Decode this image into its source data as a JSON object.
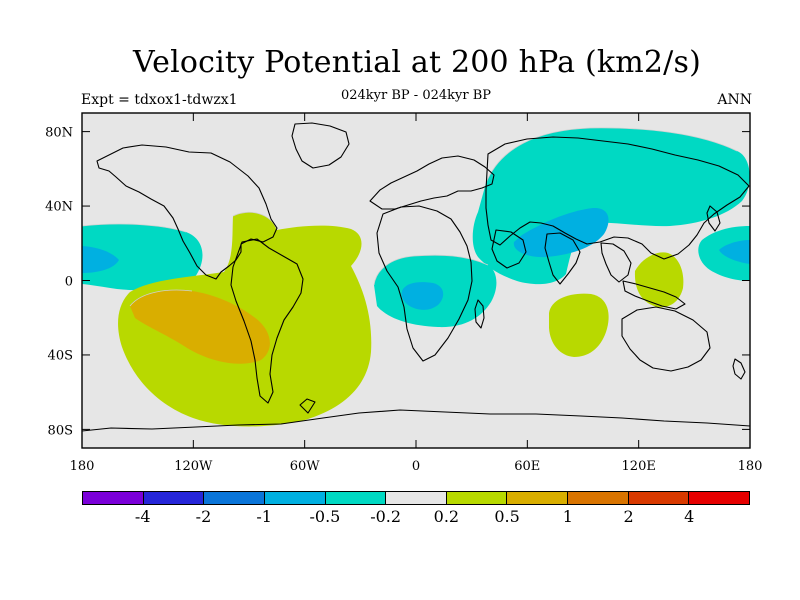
{
  "title": "Velocity Potential at 200 hPa (km2/s)",
  "subtitle": {
    "left": "Expt = tdxox1-tdwzx1",
    "center": "024kyr BP - 024kyr BP",
    "right": "ANN"
  },
  "chart_data": {
    "type": "heatmap",
    "x_ticks": [
      "180",
      "120W",
      "60W",
      "0",
      "60E",
      "120E",
      "180"
    ],
    "y_ticks": [
      "80N",
      "40N",
      "0",
      "40S",
      "80S"
    ],
    "x_range": [
      -180,
      180
    ],
    "y_range": [
      -90,
      90
    ],
    "colorbar": {
      "labels": [
        "-4",
        "-2",
        "-1",
        "-0.5",
        "-0.2",
        "0.2",
        "0.5",
        "1",
        "2",
        "4"
      ],
      "colors": [
        "#7b00d9",
        "#2626d9",
        "#0a75d9",
        "#00b0e1",
        "#00d9c3",
        "#e6e6e6",
        "#b8d900",
        "#d9ae00",
        "#d97400",
        "#d93a00",
        "#e60000"
      ]
    }
  }
}
